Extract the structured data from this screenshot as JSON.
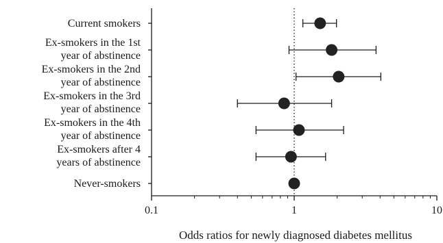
{
  "chart_data": {
    "type": "forest",
    "xlabel": "Odds ratios for newly diagnosed diabetes mellitus",
    "x_scale": "log",
    "xlim": [
      0.1,
      10
    ],
    "x_ticks": [
      "0.1",
      "1",
      "10"
    ],
    "reference_line": 1,
    "categories": [
      [
        "Current smokers"
      ],
      [
        "Ex-smokers in the 1st",
        "year of abstinence"
      ],
      [
        "Ex-smokers in the 2nd",
        "year of abstinence"
      ],
      [
        "Ex-smokers in the 3rd",
        "year of abstinence"
      ],
      [
        "Ex-smokers in the 4th",
        "year of abstinence"
      ],
      [
        "Ex-smokers after 4",
        "years of abstinence"
      ],
      [
        "Never-smokers"
      ]
    ],
    "odds_ratios": [
      1.52,
      1.83,
      2.05,
      0.85,
      1.08,
      0.95,
      1.0
    ],
    "ci_lower": [
      1.15,
      0.92,
      1.03,
      0.4,
      0.54,
      0.54,
      null
    ],
    "ci_upper": [
      1.98,
      3.75,
      4.05,
      1.83,
      2.22,
      1.66,
      null
    ],
    "colors": {
      "marker": "#222222",
      "axis": "#1a1a1a"
    }
  }
}
